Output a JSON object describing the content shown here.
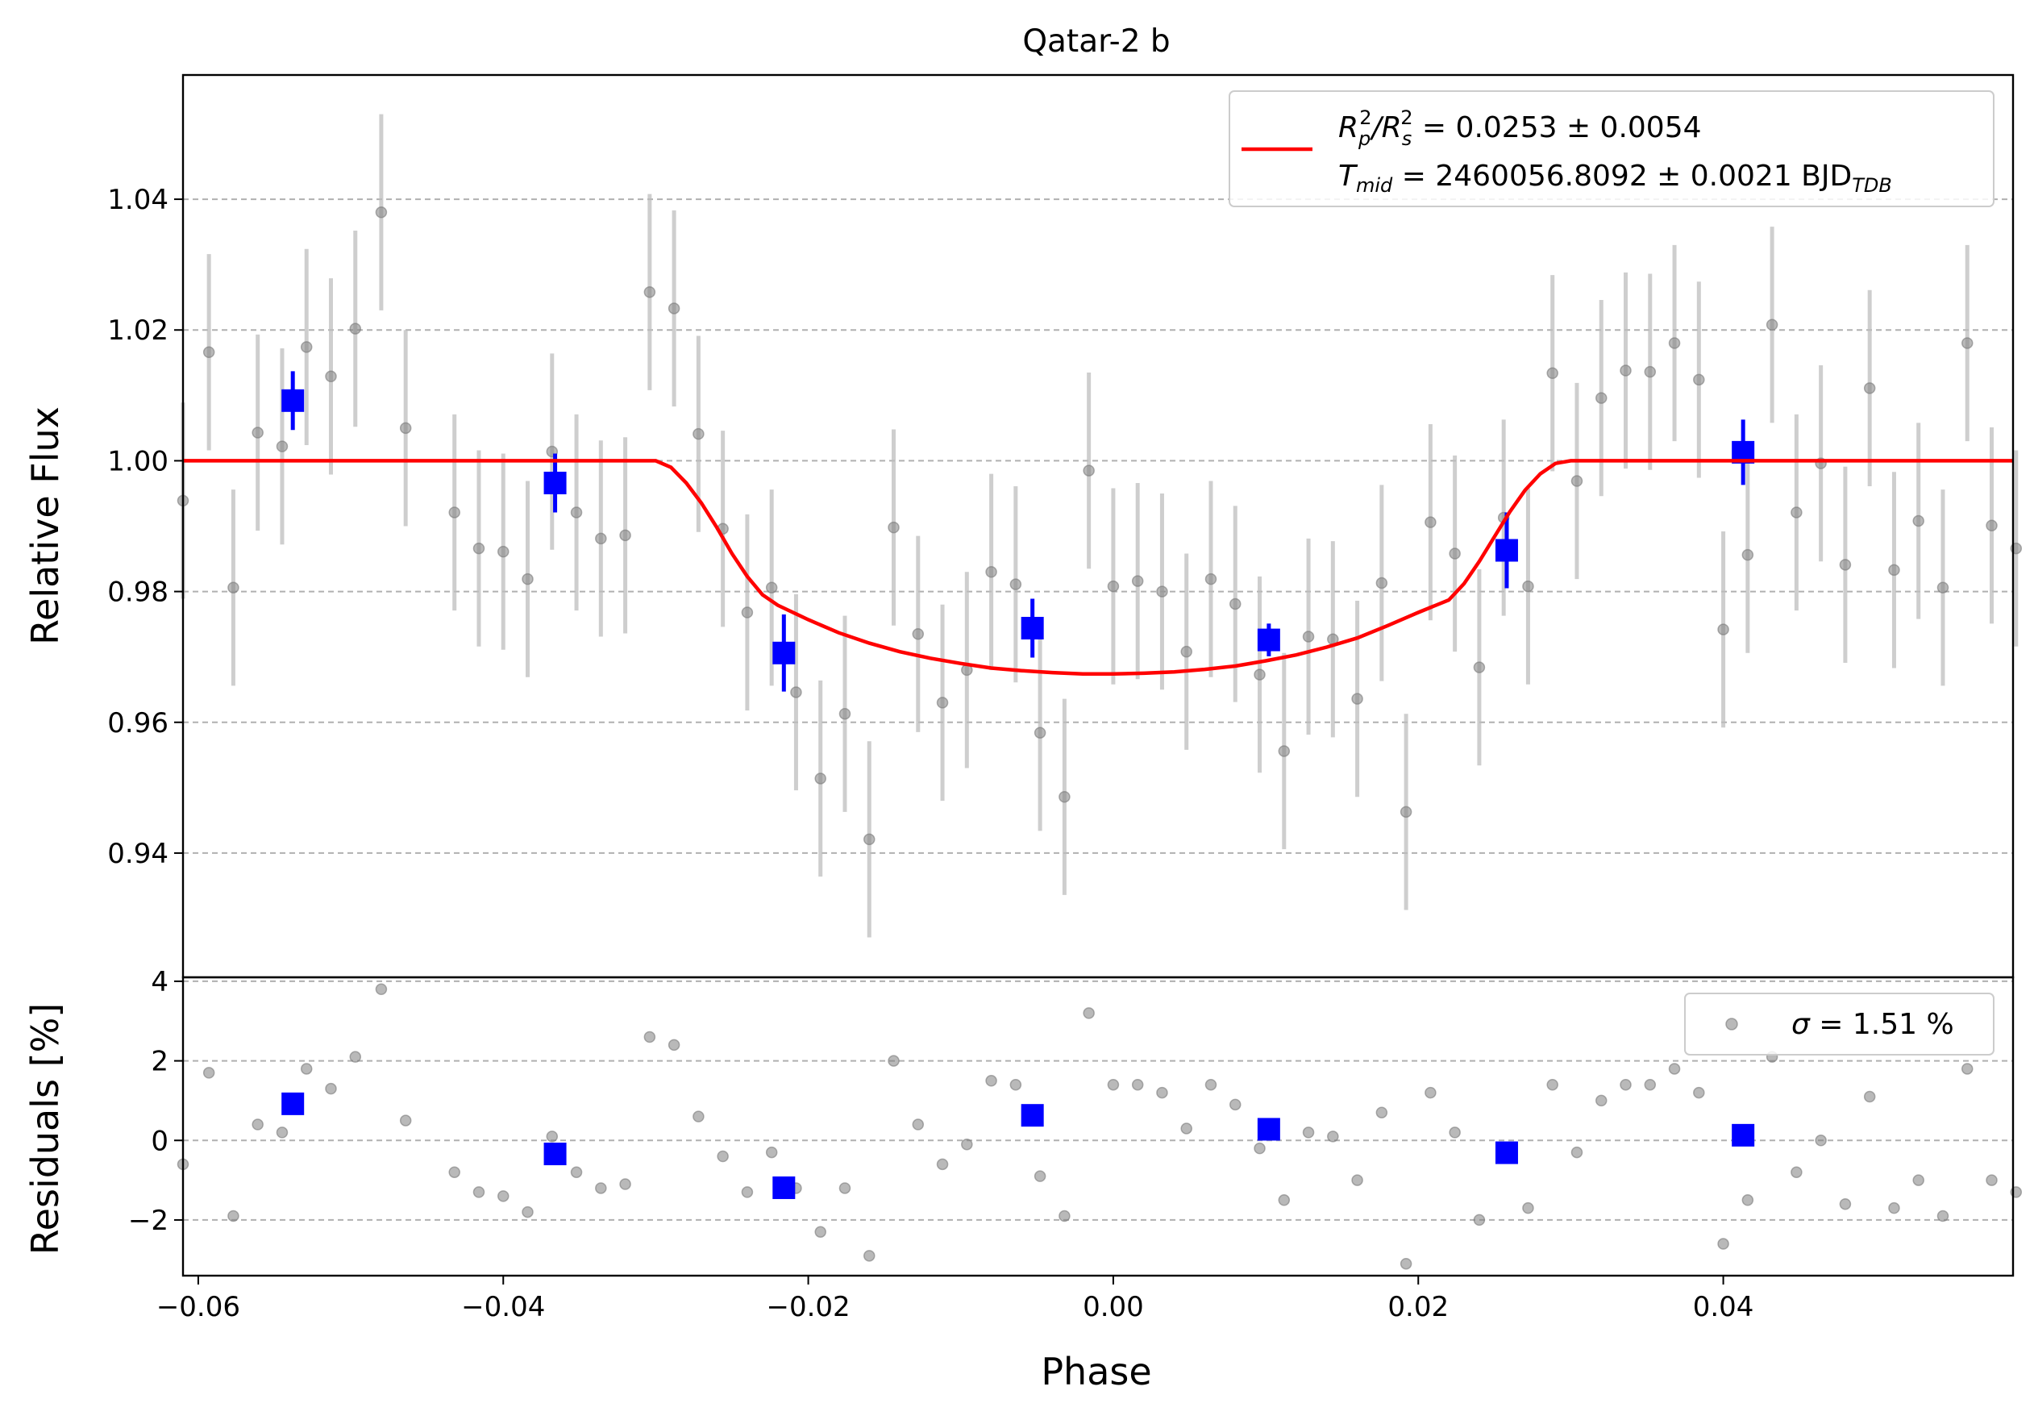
{
  "chart_data": {
    "type": "scatter",
    "title": "Qatar-2 b",
    "xlabel": "Phase",
    "xlim": [
      -0.061,
      0.059
    ],
    "x_ticks": [
      -0.06,
      -0.04,
      -0.02,
      0.0,
      0.02,
      0.04
    ],
    "x_tick_labels": [
      "−0.06",
      "−0.04",
      "−0.02",
      "0.00",
      "0.02",
      "0.04"
    ],
    "grid": true,
    "panels": {
      "flux": {
        "ylabel": "Relative Flux",
        "ylim": [
          0.921,
          1.059
        ],
        "y_ticks": [
          0.94,
          0.96,
          0.98,
          1.0,
          1.02,
          1.04
        ],
        "y_tick_labels": [
          "0.94",
          "0.96",
          "0.98",
          "1.00",
          "1.02",
          "1.04"
        ],
        "legend_position": "top-right",
        "legend": {
          "model_label": "R_p^2/R_s^2 = 0.0253 ± 0.0054",
          "model_label_main": "R",
          "model_label_sub_p": "p",
          "model_label_sup": "2",
          "model_label_slash": "/R",
          "model_label_sub_s": "s",
          "model_label_value": " = 0.0253 ± 0.0054",
          "tmid_main": "T",
          "tmid_sub": "mid",
          "tmid_value": " = 2460056.8092 ± 0.0021 BJD",
          "tmid_unit_sub": "TDB"
        },
        "series": [
          {
            "kind": "raw",
            "color": "#808080",
            "err": 0.015,
            "x": [
              -0.061,
              -0.0593,
              -0.0577,
              -0.0561,
              -0.0545,
              -0.0529,
              -0.0513,
              -0.0497,
              -0.048,
              -0.0464,
              -0.0432,
              -0.0416,
              -0.04,
              -0.0384,
              -0.0368,
              -0.0352,
              -0.0336,
              -0.032,
              -0.0304,
              -0.0288,
              -0.0272,
              -0.0256,
              -0.024,
              -0.0224,
              -0.0208,
              -0.0192,
              -0.0176,
              -0.016,
              -0.0144,
              -0.0128,
              -0.0112,
              -0.0096,
              -0.008,
              -0.0064,
              -0.0048,
              -0.0032,
              -0.0016,
              0.0,
              0.0016,
              0.0032,
              0.0048,
              0.0064,
              0.008,
              0.0096,
              0.0112,
              0.0128,
              0.0144,
              0.016,
              0.0176,
              0.0192,
              0.0208,
              0.0224,
              0.024,
              0.0256,
              0.0272,
              0.0288,
              0.0304,
              0.032,
              0.0336,
              0.0352,
              0.0368,
              0.0384,
              0.04,
              0.0416,
              0.0432,
              0.0448,
              0.0464,
              0.048,
              0.0496,
              0.0512,
              0.0528,
              0.0544,
              0.056,
              0.0576,
              0.0592
            ],
            "y": [
              0.9939,
              1.0166,
              0.9806,
              1.0043,
              1.0022,
              1.0174,
              1.0129,
              1.0202,
              1.038,
              1.005,
              0.9921,
              0.9866,
              0.9861,
              0.9819,
              1.0014,
              0.9921,
              0.9881,
              0.9886,
              1.0258,
              1.0233,
              1.0041,
              0.9896,
              0.9768,
              0.9806,
              0.9646,
              0.9514,
              0.9613,
              0.9421,
              0.9898,
              0.9735,
              0.963,
              0.968,
              0.983,
              0.9811,
              0.9584,
              0.9486,
              0.9985,
              0.9808,
              0.9816,
              0.98,
              0.9708,
              0.9819,
              0.9781,
              0.9673,
              0.9556,
              0.9731,
              0.9727,
              0.9636,
              0.9813,
              0.9463,
              0.9906,
              0.9858,
              0.9684,
              0.9913,
              0.9808,
              1.0134,
              0.9969,
              1.0096,
              1.0138,
              1.0136,
              1.018,
              1.0124,
              0.9742,
              0.9856,
              1.0208,
              0.9921,
              0.9996,
              0.9841,
              1.0111,
              0.9833,
              0.9908,
              0.9806,
              1.018,
              0.9901,
              0.9866
            ]
          },
          {
            "kind": "binned",
            "color": "#0000ff",
            "x": [
              -0.0538,
              -0.0366,
              -0.0216,
              -0.0053,
              0.0102,
              0.0258,
              0.0413
            ],
            "y": [
              1.0092,
              0.9966,
              0.9706,
              0.9744,
              0.9726,
              0.9863,
              1.0013
            ],
            "err": [
              0.0045,
              0.0045,
              0.0059,
              0.0045,
              0.0025,
              0.0058,
              0.005
            ]
          },
          {
            "kind": "model",
            "color": "#ff0000",
            "x": [
              -0.061,
              -0.03,
              -0.029,
              -0.028,
              -0.027,
              -0.026,
              -0.025,
              -0.024,
              -0.023,
              -0.022,
              -0.02,
              -0.018,
              -0.016,
              -0.014,
              -0.012,
              -0.01,
              -0.008,
              -0.006,
              -0.004,
              -0.002,
              0.0,
              0.002,
              0.004,
              0.006,
              0.008,
              0.01,
              0.012,
              0.014,
              0.016,
              0.018,
              0.02,
              0.022,
              0.023,
              0.024,
              0.025,
              0.026,
              0.027,
              0.028,
              0.029,
              0.03,
              0.059
            ],
            "y": [
              1.0,
              1.0,
              0.999,
              0.9966,
              0.9935,
              0.9898,
              0.9858,
              0.9823,
              0.9795,
              0.9779,
              0.9757,
              0.9737,
              0.9721,
              0.9708,
              0.9698,
              0.969,
              0.9683,
              0.9679,
              0.9676,
              0.9674,
              0.9674,
              0.9675,
              0.9677,
              0.9681,
              0.9686,
              0.9694,
              0.9703,
              0.9715,
              0.9729,
              0.9748,
              0.9768,
              0.9787,
              0.9812,
              0.9846,
              0.9884,
              0.9922,
              0.9955,
              0.998,
              0.9996,
              1.0,
              1.0
            ]
          }
        ]
      },
      "residuals": {
        "ylabel": "Residuals [%]",
        "ylim": [
          -3.4,
          4.1
        ],
        "y_ticks": [
          -2,
          0,
          2,
          4
        ],
        "y_tick_labels": [
          "−2",
          "0",
          "2",
          "4"
        ],
        "legend_position": "top-right",
        "legend": {
          "sigma_symbol": "σ",
          "sigma_value": " = 1.51 %"
        },
        "series": [
          {
            "kind": "raw",
            "color": "#808080",
            "x": [
              -0.061,
              -0.0593,
              -0.0577,
              -0.0561,
              -0.0545,
              -0.0529,
              -0.0513,
              -0.0497,
              -0.048,
              -0.0464,
              -0.0432,
              -0.0416,
              -0.04,
              -0.0384,
              -0.0368,
              -0.0352,
              -0.0336,
              -0.032,
              -0.0304,
              -0.0288,
              -0.0272,
              -0.0256,
              -0.024,
              -0.0224,
              -0.0208,
              -0.0192,
              -0.0176,
              -0.016,
              -0.0144,
              -0.0128,
              -0.0112,
              -0.0096,
              -0.008,
              -0.0064,
              -0.0048,
              -0.0032,
              -0.0016,
              0.0,
              0.0016,
              0.0032,
              0.0048,
              0.0064,
              0.008,
              0.0096,
              0.0112,
              0.0128,
              0.0144,
              0.016,
              0.0176,
              0.0192,
              0.0208,
              0.0224,
              0.024,
              0.0256,
              0.0272,
              0.0288,
              0.0304,
              0.032,
              0.0336,
              0.0352,
              0.0368,
              0.0384,
              0.04,
              0.0416,
              0.0432,
              0.0448,
              0.0464,
              0.048,
              0.0496,
              0.0512,
              0.0528,
              0.0544,
              0.056,
              0.0576,
              0.0592
            ],
            "y": [
              -0.6,
              1.7,
              -1.9,
              0.4,
              0.2,
              1.8,
              1.3,
              2.1,
              3.8,
              0.5,
              -0.8,
              -1.3,
              -1.4,
              -1.8,
              0.1,
              -0.8,
              -1.2,
              -1.1,
              2.6,
              2.4,
              0.6,
              -0.4,
              -1.3,
              -0.3,
              -1.2,
              -2.3,
              -1.2,
              -2.9,
              2.0,
              0.4,
              -0.6,
              -0.1,
              1.5,
              1.4,
              -0.9,
              -1.9,
              3.2,
              1.4,
              1.4,
              1.2,
              0.3,
              1.4,
              0.9,
              -0.2,
              -1.5,
              0.2,
              0.1,
              -1.0,
              0.7,
              -3.1,
              1.2,
              0.2,
              -2.0,
              -0.3,
              -1.7,
              1.4,
              -0.3,
              1.0,
              1.4,
              1.4,
              1.8,
              1.2,
              -2.6,
              -1.5,
              2.1,
              -0.8,
              0.0,
              -1.6,
              1.1,
              -1.7,
              -1.0,
              -1.9,
              1.8,
              -1.0,
              -1.3
            ]
          },
          {
            "kind": "binned",
            "color": "#0000ff",
            "x": [
              -0.0538,
              -0.0366,
              -0.0216,
              -0.0053,
              0.0102,
              0.0258,
              0.0413
            ],
            "y": [
              0.92,
              -0.34,
              -1.19,
              0.63,
              0.28,
              -0.31,
              0.13
            ]
          }
        ]
      }
    }
  }
}
